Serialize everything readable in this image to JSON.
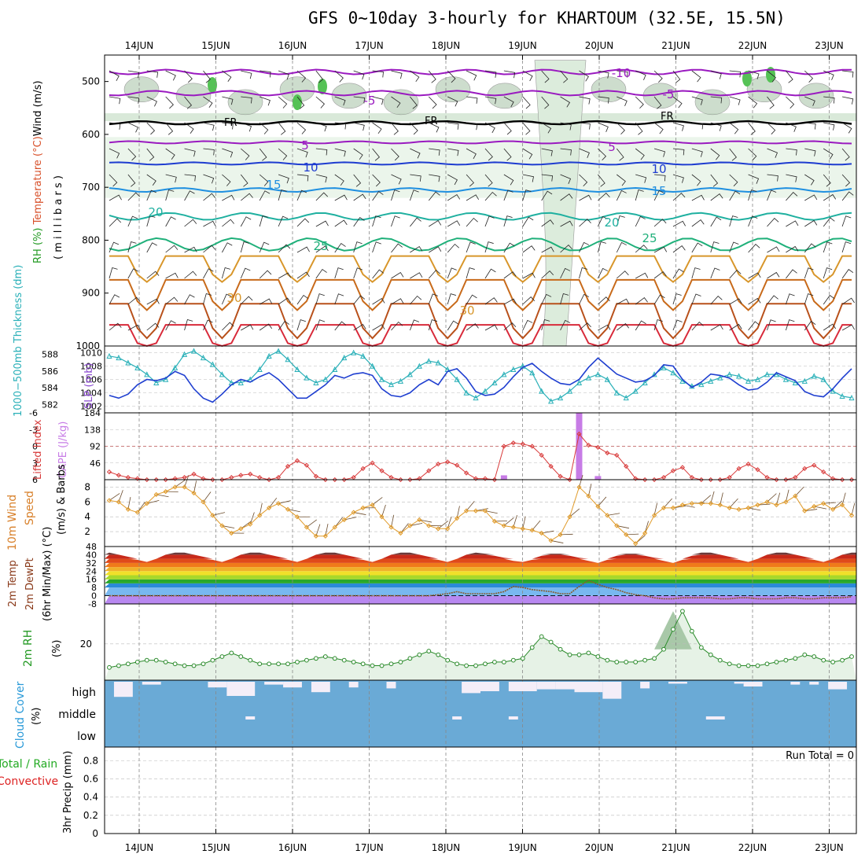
{
  "title": "GFS 0~10day 3-hourly for KHARTOUM (32.5E, 15.5N)",
  "dates": [
    "14JUN",
    "15JUN",
    "16JUN",
    "17JUN",
    "18JUN",
    "19JUN",
    "20JUN",
    "21JUN",
    "22JUN",
    "23JUN"
  ],
  "colors": {
    "grid": "#9a9a9a",
    "cloud": "#6aaad6",
    "rh_fill": "#e6f2e6",
    "cape": "#c77ce6",
    "li": "#d83a3a",
    "slp": "#1f3fd0",
    "thick": "#2ab0b8",
    "wind": "#e09a28",
    "dew": "#8b5a2b",
    "rh": "#2a8a2a",
    "precip_total": "#22aa22",
    "precip_conv": "#dd2222"
  },
  "panels": {
    "upper": {
      "y_label_parts": [
        "RH (%)",
        "Temperature (°C)",
        "Wind (m/s)"
      ],
      "y_unit": "( m i l l i b a r s )",
      "ticks": [
        "500",
        "600",
        "700",
        "800",
        "900",
        "1000"
      ],
      "freezing_label": "FR"
    },
    "slp": {
      "left_label": "1000−500mb Thickness (dm)",
      "right_label": "SLP (mb)",
      "thick_ticks": [
        "588",
        "586",
        "584",
        "582"
      ],
      "slp_ticks": [
        "1010",
        "1008",
        "1006",
        "1004",
        "1002"
      ]
    },
    "cape": {
      "left_label": "Lifted Index",
      "right_label": "CAPE (J/kg)",
      "li_ticks": [
        "-6",
        "-3",
        "0",
        "3",
        "6"
      ],
      "cape_ticks": [
        "184",
        "138",
        "92",
        "46"
      ]
    },
    "wind": {
      "label_main": "10m Wind",
      "label_speed": "Speed",
      "label_unit": "(m/s) & Barbs",
      "ticks": [
        "8",
        "6",
        "4",
        "2"
      ]
    },
    "temp": {
      "label1": "2m Temp",
      "label2": "2m DewPt",
      "label3": "(6hr Min/Max) (°C)",
      "ticks": [
        "48",
        "40",
        "32",
        "24",
        "16",
        "8",
        "0",
        "-8"
      ]
    },
    "rh": {
      "label": "2m RH",
      "unit": "(%)",
      "ticks": [
        "20"
      ]
    },
    "cloud": {
      "label": "Cloud Cover",
      "unit": "(%)",
      "levels": [
        "high",
        "middle",
        "low"
      ]
    },
    "precip": {
      "label1": "Total / Rain",
      "label2": "Convective",
      "unit": "3hr Precip (mm)",
      "ticks": [
        "0.8",
        "0.6",
        "0.4",
        "0.2",
        "0"
      ],
      "run_total": "Run Total = 0"
    }
  },
  "chart_data": {
    "type": "line",
    "x": "3-hourly steps, 13JUN 12Z to 23JUN 06Z (80 steps)",
    "contour_labels": {
      "temperature": [
        "-10",
        "-5",
        "5",
        "10",
        "15",
        "20",
        "25",
        "30"
      ],
      "rh": [
        "10",
        "30"
      ]
    },
    "series": [
      {
        "name": "SLP (mb)",
        "values": [
          1003.6,
          1003.2,
          1003.8,
          1005.2,
          1006.0,
          1005.8,
          1006.2,
          1007.2,
          1006.6,
          1004.6,
          1003.2,
          1002.6,
          1003.8,
          1005.2,
          1006.0,
          1005.6,
          1006.4,
          1007.0,
          1006.0,
          1004.6,
          1003.2,
          1003.2,
          1004.2,
          1005.2,
          1006.6,
          1006.2,
          1006.8,
          1007.0,
          1006.6,
          1004.6,
          1003.6,
          1003.4,
          1004.0,
          1005.2,
          1006.0,
          1005.2,
          1007.2,
          1007.6,
          1006.2,
          1004.2,
          1003.6,
          1003.8,
          1004.8,
          1006.4,
          1007.8,
          1008.4,
          1007.2,
          1006.2,
          1005.4,
          1005.2,
          1006.0,
          1007.8,
          1009.2,
          1008.0,
          1006.8,
          1006.2,
          1005.6,
          1005.8,
          1006.6,
          1008.2,
          1008.0,
          1006.0,
          1004.8,
          1005.6,
          1006.8,
          1006.6,
          1006.2,
          1005.2,
          1004.4,
          1004.6,
          1005.6,
          1007.0,
          1006.4,
          1005.8,
          1004.2,
          1003.6,
          1003.4,
          1004.6,
          1006.2,
          1007.6
        ]
      },
      {
        "name": "1000-500mb Thickness (dm)",
        "values": [
          587.8,
          587.6,
          587.0,
          586.4,
          585.6,
          584.6,
          585.0,
          586.4,
          588.0,
          588.4,
          587.6,
          586.8,
          585.6,
          584.6,
          584.6,
          585.0,
          586.2,
          587.8,
          588.4,
          587.4,
          586.2,
          585.2,
          584.6,
          585.0,
          586.2,
          587.6,
          588.2,
          587.8,
          586.6,
          585.0,
          584.4,
          584.8,
          585.6,
          586.6,
          587.2,
          587.0,
          586.2,
          585.0,
          583.4,
          582.8,
          583.6,
          584.6,
          585.6,
          586.2,
          586.6,
          585.8,
          583.6,
          582.4,
          582.8,
          583.6,
          584.6,
          585.2,
          585.6,
          585.0,
          583.4,
          582.8,
          583.6,
          584.6,
          585.6,
          586.4,
          585.8,
          584.8,
          584.2,
          584.4,
          584.8,
          585.2,
          585.6,
          585.4,
          584.8,
          585.0,
          585.6,
          585.6,
          585.0,
          584.6,
          584.8,
          585.4,
          585.0,
          583.6,
          583.0,
          582.8
        ]
      },
      {
        "name": "Lifted Index",
        "values": [
          4.6,
          5.2,
          5.6,
          5.8,
          6.0,
          6.0,
          6.0,
          5.8,
          5.6,
          5.0,
          5.8,
          6.0,
          6.0,
          5.6,
          5.2,
          5.0,
          5.6,
          6.0,
          5.6,
          3.6,
          2.6,
          3.4,
          5.4,
          6.0,
          6.0,
          6.0,
          5.6,
          4.0,
          3.0,
          4.4,
          5.6,
          6.0,
          6.0,
          5.8,
          4.4,
          3.2,
          2.8,
          3.4,
          4.8,
          5.8,
          5.8,
          6.0,
          0.0,
          -0.6,
          -0.4,
          0.0,
          1.6,
          3.6,
          5.4,
          6.0,
          -2.2,
          -0.2,
          0.2,
          1.2,
          1.6,
          3.6,
          5.8,
          6.0,
          6.0,
          5.6,
          4.4,
          3.8,
          5.6,
          6.0,
          6.0,
          6.0,
          5.6,
          4.0,
          3.2,
          4.2,
          5.6,
          6.0,
          6.0,
          5.6,
          4.0,
          3.4,
          4.6,
          5.8,
          6.0,
          6.0
        ]
      },
      {
        "name": "CAPE (J/kg)",
        "values": [
          0,
          0,
          0,
          0,
          0,
          0,
          0,
          0,
          0,
          0,
          0,
          0,
          0,
          0,
          0,
          0,
          0,
          0,
          0,
          0,
          0,
          0,
          0,
          0,
          0,
          0,
          0,
          0,
          0,
          0,
          0,
          0,
          0,
          0,
          0,
          0,
          0,
          0,
          0,
          0,
          0,
          0,
          12,
          0,
          0,
          0,
          0,
          0,
          0,
          0,
          184,
          0,
          10,
          0,
          0,
          0,
          0,
          0,
          0,
          0,
          0,
          0,
          0,
          0,
          0,
          0,
          0,
          0,
          0,
          0,
          0,
          0,
          0,
          0,
          0,
          0,
          0,
          0,
          0,
          0
        ]
      },
      {
        "name": "10m Wind Speed (m/s)",
        "values": [
          6.2,
          6.0,
          5.0,
          4.6,
          5.8,
          7.0,
          7.4,
          8.0,
          8.0,
          7.2,
          6.0,
          4.2,
          2.8,
          1.8,
          2.4,
          3.0,
          4.2,
          5.2,
          5.8,
          5.0,
          4.0,
          2.6,
          1.4,
          1.4,
          2.6,
          3.6,
          4.6,
          5.2,
          5.6,
          4.0,
          2.6,
          1.8,
          2.8,
          3.6,
          2.8,
          2.4,
          2.4,
          3.8,
          4.8,
          4.8,
          4.8,
          3.4,
          2.8,
          2.6,
          2.4,
          2.2,
          1.8,
          0.8,
          1.6,
          4.0,
          8.0,
          6.8,
          5.4,
          4.2,
          2.8,
          1.6,
          0.4,
          1.8,
          4.2,
          5.2,
          5.2,
          5.6,
          5.8,
          5.8,
          5.8,
          5.6,
          5.2,
          5.0,
          5.2,
          5.6,
          6.0,
          5.6,
          6.0,
          6.8,
          4.8,
          5.4,
          5.8,
          5.0,
          5.6,
          4.2
        ]
      },
      {
        "name": "2m Temp max (°C)",
        "values": [
          42,
          40,
          38,
          35,
          33,
          36,
          40,
          42,
          42,
          40,
          38,
          35,
          33,
          36,
          40,
          42,
          42,
          40,
          38,
          35,
          33,
          36,
          40,
          42,
          42,
          40,
          38,
          35,
          33,
          36,
          40,
          42,
          42,
          40,
          38,
          35,
          33,
          36,
          40,
          42,
          41,
          39,
          37,
          34,
          33,
          35,
          39,
          41,
          41,
          39,
          37,
          34,
          32,
          35,
          39,
          41,
          41,
          39,
          37,
          34,
          32,
          35,
          39,
          42,
          42,
          40,
          38,
          35,
          33,
          36,
          40,
          42,
          42,
          40,
          38,
          35,
          33,
          36,
          40,
          42
        ]
      },
      {
        "name": "2m DewPt (°C)",
        "values": [
          0,
          0,
          0,
          0,
          0,
          0,
          0,
          0,
          0,
          0,
          0,
          0,
          0,
          0,
          0,
          0,
          0,
          0,
          0,
          0,
          0,
          0,
          0,
          0,
          0,
          0,
          0,
          0,
          0,
          0,
          0,
          0,
          0,
          0,
          0,
          1,
          2,
          4,
          2,
          2,
          2,
          2,
          4,
          9,
          8,
          6,
          5,
          4,
          2,
          2,
          9,
          15,
          11,
          8,
          6,
          3,
          1,
          0,
          -2,
          -3,
          -3,
          -2,
          -2,
          -2,
          -2,
          -3,
          -3,
          -2,
          -2,
          -3,
          -3,
          -3,
          -2,
          -2,
          -3,
          -3,
          -2,
          -2,
          -2,
          -1
        ]
      },
      {
        "name": "2m RH (%)",
        "values": [
          7,
          8,
          9,
          10,
          11,
          11,
          10,
          9,
          8,
          8,
          9,
          11,
          13,
          15,
          13,
          11,
          9,
          9,
          9,
          9,
          10,
          11,
          12,
          13,
          12,
          11,
          10,
          9,
          8,
          8,
          9,
          10,
          12,
          14,
          16,
          14,
          11,
          9,
          8,
          8,
          9,
          10,
          10,
          11,
          12,
          18,
          24,
          21,
          17,
          14,
          14,
          15,
          13,
          11,
          10,
          10,
          10,
          11,
          12,
          17,
          28,
          38,
          27,
          18,
          14,
          11,
          9,
          8,
          8,
          8,
          9,
          10,
          11,
          12,
          14,
          13,
          11,
          10,
          11,
          13
        ]
      },
      {
        "name": "3hr Precip Total / Rain (mm)",
        "values": [
          0,
          0,
          0,
          0,
          0,
          0,
          0,
          0,
          0,
          0,
          0,
          0,
          0,
          0,
          0,
          0,
          0,
          0,
          0,
          0,
          0,
          0,
          0,
          0,
          0,
          0,
          0,
          0,
          0,
          0,
          0,
          0,
          0,
          0,
          0,
          0,
          0,
          0,
          0,
          0,
          0,
          0,
          0,
          0,
          0,
          0,
          0,
          0,
          0,
          0,
          0,
          0,
          0,
          0,
          0,
          0,
          0,
          0,
          0,
          0,
          0,
          0,
          0,
          0,
          0,
          0,
          0,
          0,
          0,
          0,
          0,
          0,
          0,
          0,
          0,
          0,
          0,
          0,
          0,
          0
        ]
      }
    ]
  }
}
